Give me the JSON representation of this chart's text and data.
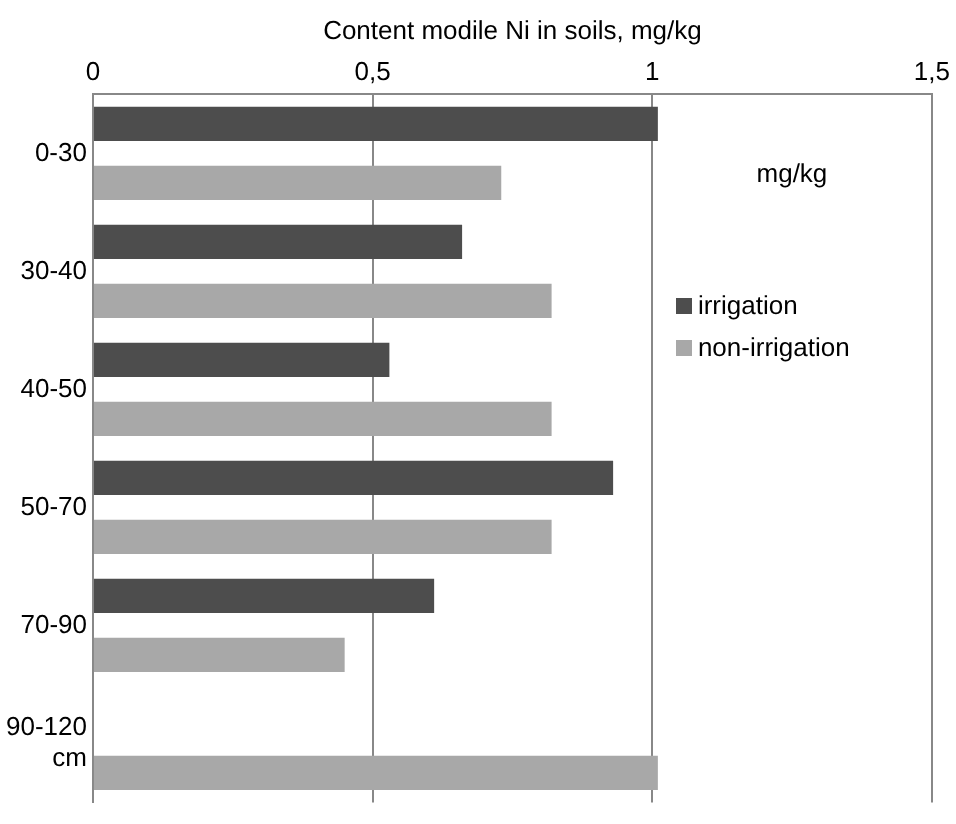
{
  "chart_data": {
    "type": "bar",
    "orientation": "horizontal",
    "xlabel": "Content modile Ni in soils, mg/kg",
    "categories": [
      "0-30",
      "30-40",
      "40-50",
      "50-70",
      "70-90",
      "90-120 cm"
    ],
    "series": [
      {
        "name": "irrigation",
        "color": "#4d4d4d",
        "values": [
          1.01,
          0.66,
          0.53,
          0.93,
          0.61,
          null
        ]
      },
      {
        "name": "non-irrigation",
        "color": "#a8a8a8",
        "values": [
          0.73,
          0.82,
          0.82,
          0.82,
          0.45,
          1.01
        ]
      }
    ],
    "xlim": [
      0,
      1.5
    ],
    "xticks": [
      0,
      {
        "value": 0.5,
        "label": "0,5"
      },
      1,
      {
        "value": 1.5,
        "label": "1,5"
      }
    ],
    "grid": "x",
    "legend": "right",
    "annotations": [
      "mg/kg"
    ]
  }
}
